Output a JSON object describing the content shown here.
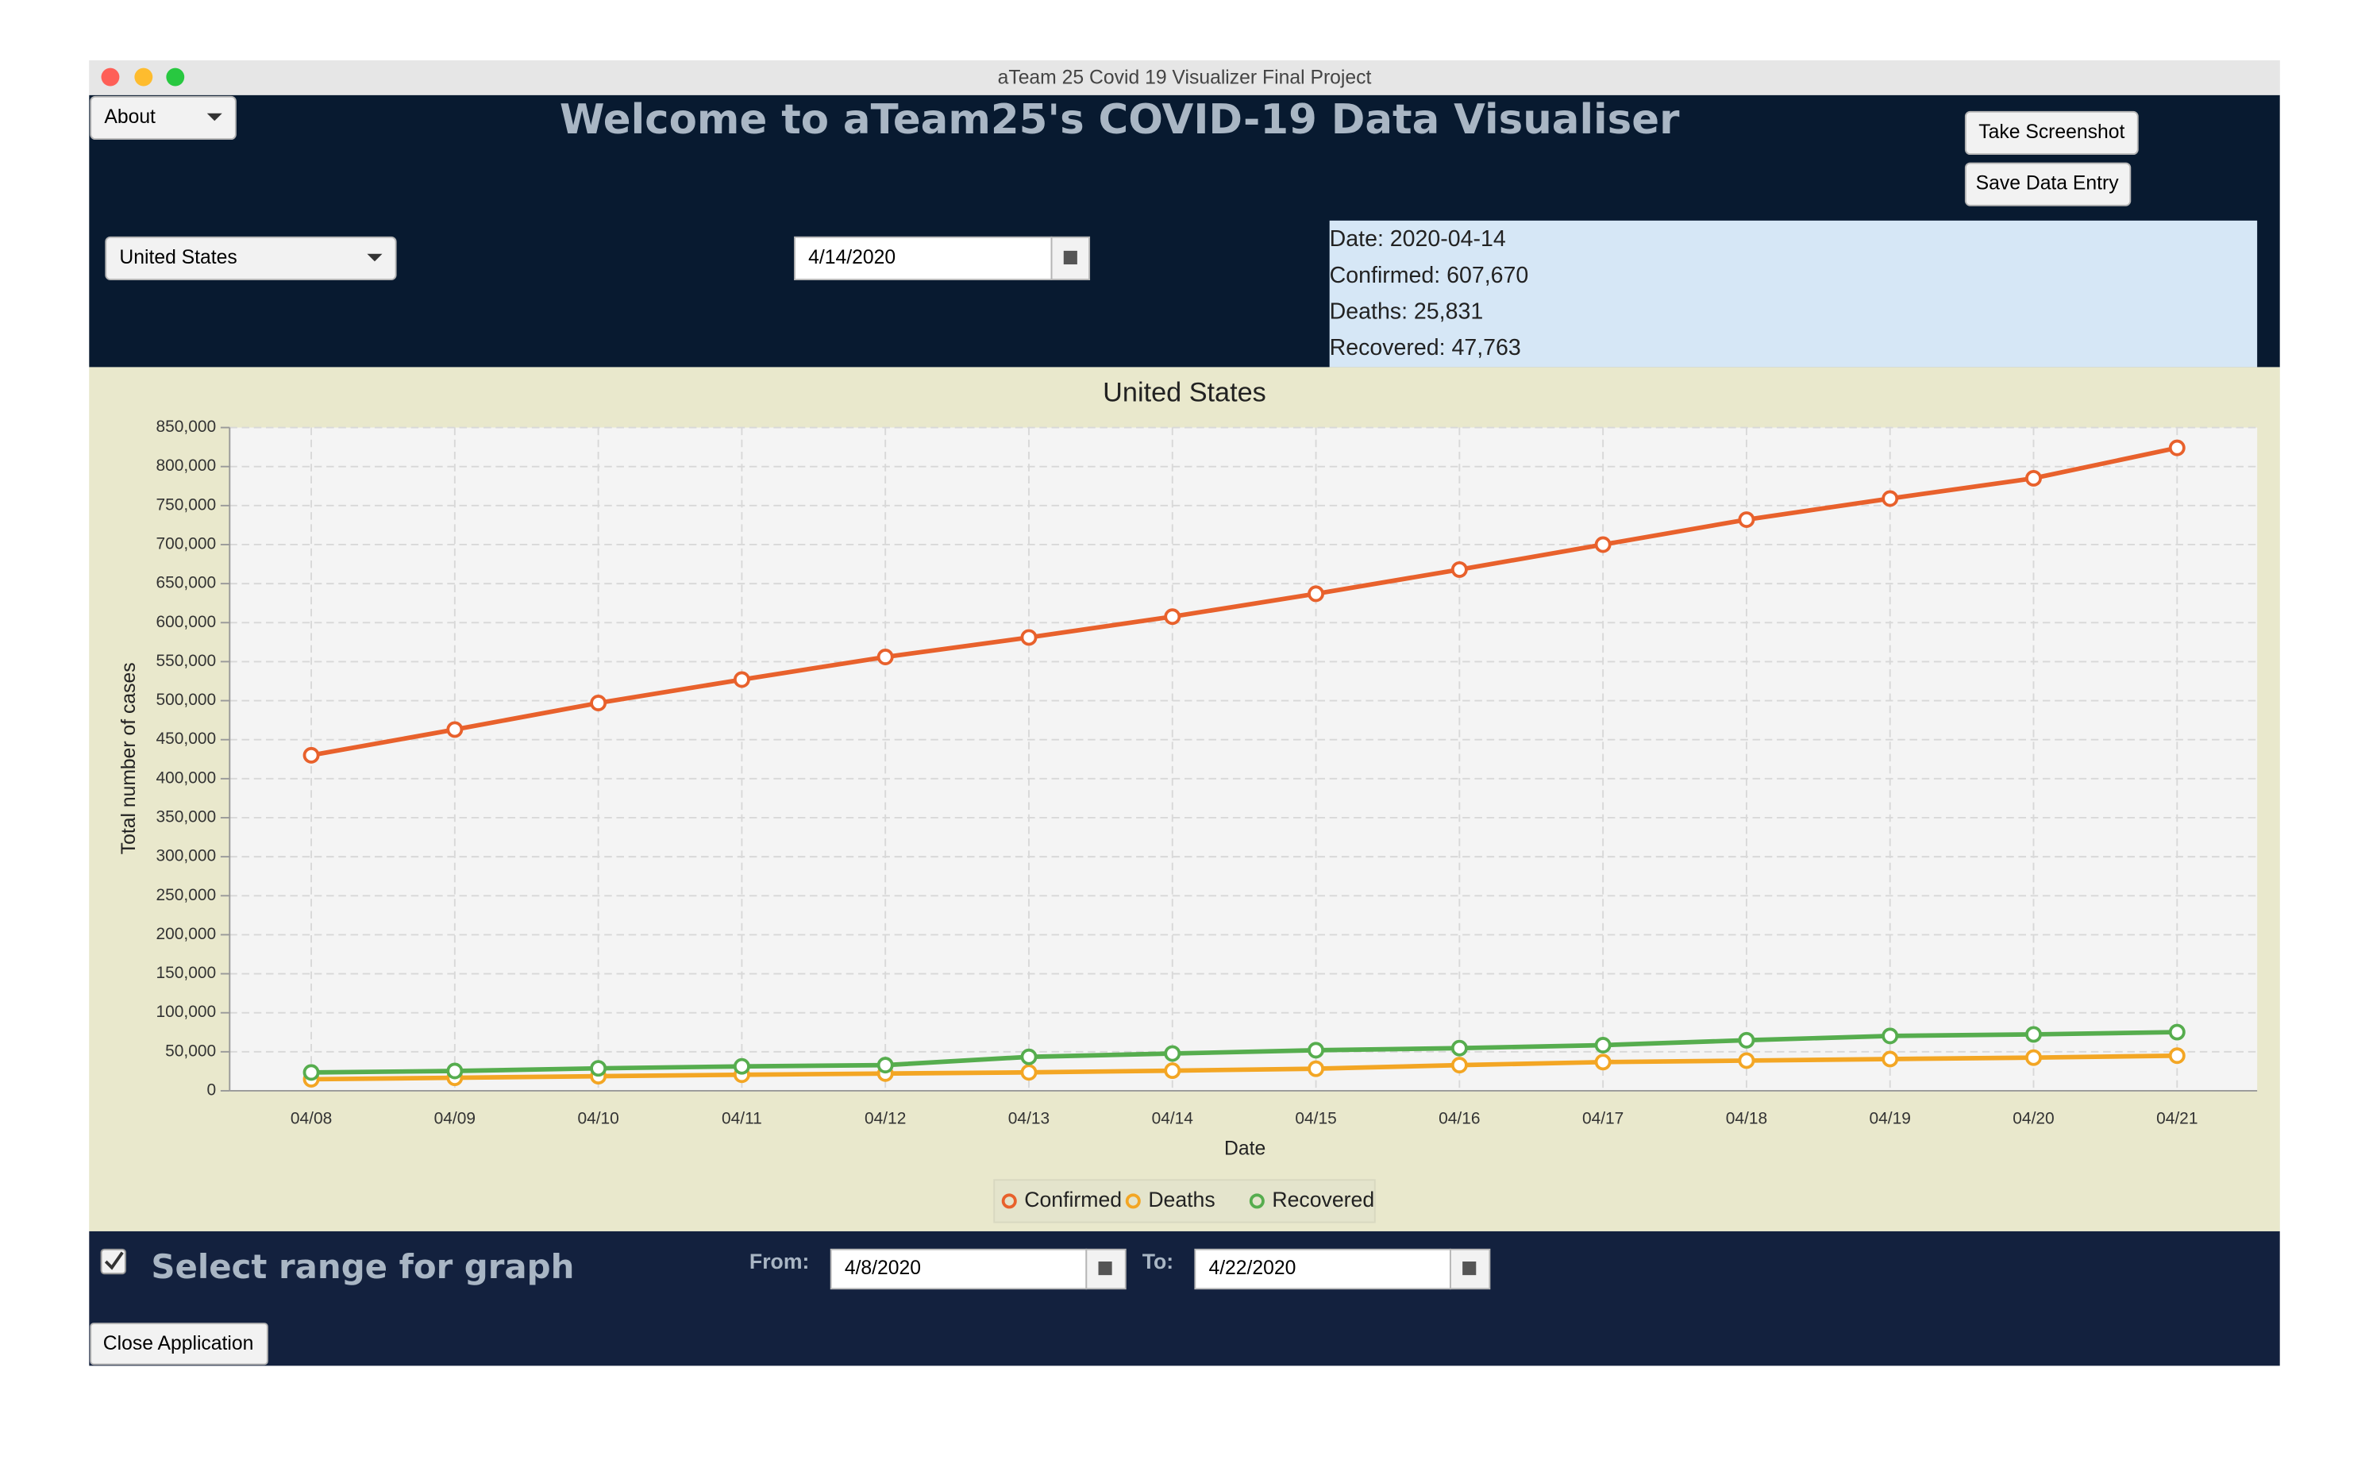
{
  "window_title": "aTeam 25 Covid 19 Visualizer Final Project",
  "header": {
    "menu_button": "About",
    "title": "Welcome to aTeam25's COVID-19 Data Visualiser",
    "buttons": [
      "Take Screenshot",
      "Save Data Entry"
    ],
    "country": "United States",
    "date": "4/14/2020",
    "info": [
      "Date: 2020-04-14",
      "Confirmed: 607,670",
      "Deaths: 25,831",
      "Recovered: 47,763"
    ]
  },
  "chart_data": {
    "type": "line",
    "title": "United States",
    "x_label": "Date",
    "y_label": "Total number of cases",
    "categories": [
      "04/08",
      "04/09",
      "04/10",
      "04/11",
      "04/12",
      "04/13",
      "04/14",
      "04/15",
      "04/16",
      "04/17",
      "04/18",
      "04/19",
      "04/20",
      "04/21"
    ],
    "series": [
      {
        "name": "Confirmed",
        "color": "#e8612c",
        "values": [
          430000,
          463000,
          497000,
          527000,
          556000,
          581000,
          607670,
          637000,
          668000,
          700000,
          732000,
          759000,
          785000,
          824000
        ]
      },
      {
        "name": "Deaths",
        "color": "#f3a624",
        "values": [
          14800,
          16700,
          18700,
          20600,
          22100,
          23600,
          25831,
          28300,
          32900,
          36800,
          38700,
          40700,
          42500,
          45000
        ]
      },
      {
        "name": "Recovered",
        "color": "#56ad4e",
        "values": [
          23500,
          25400,
          28800,
          31300,
          32900,
          43500,
          47763,
          52000,
          54700,
          58500,
          64800,
          70300,
          72300,
          75200
        ]
      }
    ],
    "ylim": [
      0,
      850000
    ],
    "yticks": [
      0,
      {
        "value": 50000,
        "label": "50,000"
      },
      {
        "value": 100000,
        "label": "100,000"
      },
      {
        "value": 150000,
        "label": "150,000"
      },
      {
        "value": 200000,
        "label": "200,000"
      },
      {
        "value": 250000,
        "label": "250,000"
      },
      {
        "value": 300000,
        "label": "300,000"
      },
      {
        "value": 350000,
        "label": "350,000"
      },
      {
        "value": 400000,
        "label": "400,000"
      },
      {
        "value": 450000,
        "label": "450,000"
      },
      {
        "value": 500000,
        "label": "500,000"
      },
      {
        "value": 550000,
        "label": "550,000"
      },
      {
        "value": 600000,
        "label": "600,000"
      },
      {
        "value": 650000,
        "label": "650,000"
      },
      {
        "value": 700000,
        "label": "700,000"
      },
      {
        "value": 750000,
        "label": "750,000"
      },
      {
        "value": 800000,
        "label": "800,000"
      },
      {
        "value": 850000,
        "label": "850,000"
      }
    ],
    "grid": true,
    "legend": "bottom"
  },
  "footer": {
    "range_label": "Select range for graph",
    "from_label": "From:",
    "from_date": "4/8/2020",
    "to_label": "To:",
    "to_date": "4/22/2020",
    "close_button": "Close Application"
  }
}
